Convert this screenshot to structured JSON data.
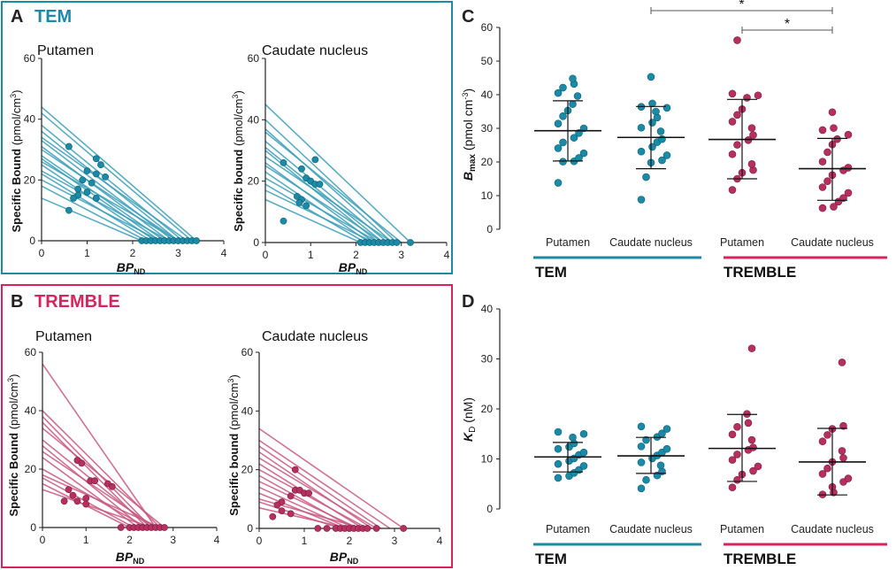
{
  "colors": {
    "tem": "#1a8aa6",
    "tem_line": "#3b9fb8",
    "tremble": "#d6245c",
    "tremble_point": "#b5305e",
    "tremble_line": "#c9587f",
    "axis": "#222222"
  },
  "panels": {
    "A": {
      "letter": "A",
      "title": "TEM"
    },
    "B": {
      "letter": "B",
      "title": "TREMBLE"
    },
    "C": {
      "letter": "C"
    },
    "D": {
      "letter": "D"
    }
  },
  "scatchard": {
    "ylabel_bold": "Specific Bound",
    "ylabel_bold_lower": "Specific bound",
    "ylabel_unit": "(pmol/cm",
    "ylabel_sup": "3",
    "ylabel_close": ")",
    "xlabel_main": "BP",
    "xlabel_sub": "ND",
    "x_ticks": [
      "0",
      "1",
      "2",
      "3",
      "4"
    ],
    "y_ticks": [
      "0",
      "20",
      "40",
      "60"
    ]
  },
  "group_labels": {
    "tem": "TEM",
    "tremble": "TREMBLE",
    "categories": [
      "Putamen",
      "Caudate nucleus",
      "Putamen",
      "Caudate nucleus"
    ]
  },
  "significance": [
    "*",
    "*"
  ],
  "axis_labels": {
    "bmax_main": "B",
    "bmax_sub": "max",
    "bmax_unit": "(pmol cm",
    "bmax_sup": "-3",
    "bmax_close": ")",
    "kd_main": "K",
    "kd_sub": "D",
    "kd_unit": "(nM)"
  },
  "chart_data": [
    {
      "id": "A-putamen",
      "type": "line",
      "title": "Putamen",
      "group": "TEM",
      "xlabel": "BPND",
      "ylabel": "Specific Bound (pmol/cm3)",
      "xlim": [
        0,
        4
      ],
      "ylim": [
        0,
        60
      ],
      "lines": [
        [
          0,
          44,
          3.4,
          0
        ],
        [
          0,
          42,
          3.3,
          0
        ],
        [
          0,
          38,
          3.1,
          0
        ],
        [
          0,
          36,
          3.0,
          0
        ],
        [
          0,
          34,
          3.2,
          0
        ],
        [
          0,
          33,
          2.9,
          0
        ],
        [
          0,
          31,
          2.8,
          0
        ],
        [
          0,
          30,
          3.0,
          0
        ],
        [
          0,
          28,
          2.7,
          0
        ],
        [
          0,
          27,
          2.6,
          0
        ],
        [
          0,
          26,
          3.0,
          0
        ],
        [
          0,
          25,
          2.5,
          0
        ],
        [
          0,
          23,
          2.8,
          0
        ],
        [
          0,
          22,
          2.4,
          0
        ],
        [
          0,
          20,
          2.6,
          0
        ],
        [
          0,
          18,
          2.3,
          0
        ],
        [
          0,
          14,
          2.2,
          0
        ]
      ],
      "points": [
        [
          0.6,
          31
        ],
        [
          1.2,
          27
        ],
        [
          1.3,
          25
        ],
        [
          1.0,
          23
        ],
        [
          1.2,
          22
        ],
        [
          1.4,
          21
        ],
        [
          0.9,
          20
        ],
        [
          1.1,
          19
        ],
        [
          0.8,
          17
        ],
        [
          1.0,
          16
        ],
        [
          0.8,
          15
        ],
        [
          0.7,
          14
        ],
        [
          1.2,
          14
        ],
        [
          0.6,
          10
        ]
      ],
      "zero_points": [
        2.2,
        2.3,
        2.4,
        2.5,
        2.6,
        2.7,
        2.8,
        2.9,
        3.0,
        3.1,
        3.2,
        3.3,
        3.4
      ]
    },
    {
      "id": "A-caudate",
      "type": "line",
      "title": "Caudate nucleus",
      "group": "TEM",
      "xlabel": "BPND",
      "ylabel": "Specific bound (pmol/cm3)",
      "xlim": [
        0,
        4
      ],
      "ylim": [
        0,
        60
      ],
      "lines": [
        [
          0,
          45,
          3.2,
          0
        ],
        [
          0,
          40,
          2.9,
          0
        ],
        [
          0,
          37,
          2.8,
          0
        ],
        [
          0,
          36,
          3.0,
          0
        ],
        [
          0,
          33,
          2.7,
          0
        ],
        [
          0,
          31,
          2.6,
          0
        ],
        [
          0,
          30,
          2.5,
          0
        ],
        [
          0,
          28,
          2.8,
          0
        ],
        [
          0,
          26,
          2.4,
          0
        ],
        [
          0,
          25,
          2.6,
          0
        ],
        [
          0,
          23,
          2.3,
          0
        ],
        [
          0,
          21,
          2.5,
          0
        ],
        [
          0,
          19,
          2.2,
          0
        ],
        [
          0,
          17,
          2.4,
          0
        ],
        [
          0,
          14,
          2.1,
          0
        ]
      ],
      "points": [
        [
          0.4,
          26
        ],
        [
          1.1,
          27
        ],
        [
          0.8,
          24
        ],
        [
          0.9,
          21
        ],
        [
          1.0,
          20
        ],
        [
          1.1,
          19
        ],
        [
          1.2,
          19
        ],
        [
          0.7,
          15
        ],
        [
          0.8,
          14
        ],
        [
          0.75,
          13
        ],
        [
          0.9,
          12
        ],
        [
          0.4,
          7
        ]
      ],
      "zero_points": [
        2.1,
        2.2,
        2.3,
        2.4,
        2.5,
        2.6,
        2.7,
        2.8,
        2.9,
        3.2
      ]
    },
    {
      "id": "B-putamen",
      "type": "line",
      "title": "Putamen",
      "group": "TREMBLE",
      "xlabel": "BPND",
      "ylabel": "Specific Bound (pmol/cm3)",
      "xlim": [
        0,
        4
      ],
      "ylim": [
        0,
        60
      ],
      "lines": [
        [
          0,
          56,
          2.6,
          0
        ],
        [
          0,
          40,
          2.7,
          0
        ],
        [
          0,
          38,
          2.5,
          0
        ],
        [
          0,
          36,
          2.4,
          0
        ],
        [
          0,
          34,
          2.8,
          0
        ],
        [
          0,
          30,
          2.5,
          0
        ],
        [
          0,
          28,
          2.3,
          0
        ],
        [
          0,
          26,
          2.6,
          0
        ],
        [
          0,
          24,
          2.2,
          0
        ],
        [
          0,
          20,
          2.4,
          0
        ],
        [
          0,
          18,
          2.7,
          0
        ],
        [
          0,
          17,
          2.1,
          0
        ],
        [
          0,
          15,
          2.0,
          0
        ],
        [
          0,
          13,
          2.5,
          0
        ]
      ],
      "points": [
        [
          0.8,
          23
        ],
        [
          0.9,
          22
        ],
        [
          1.1,
          16
        ],
        [
          1.2,
          16
        ],
        [
          1.5,
          15
        ],
        [
          1.6,
          14
        ],
        [
          0.6,
          13
        ],
        [
          0.7,
          11
        ],
        [
          1.0,
          10
        ],
        [
          0.8,
          9
        ],
        [
          0.5,
          9
        ],
        [
          1.0,
          8
        ]
      ],
      "zero_points": [
        1.8,
        2.0,
        2.1,
        2.2,
        2.3,
        2.4,
        2.5,
        2.6,
        2.7,
        2.8
      ]
    },
    {
      "id": "B-caudate",
      "type": "line",
      "title": "Caudate nucleus",
      "group": "TREMBLE",
      "xlabel": "BPND",
      "ylabel": "Specific bound (pmol/cm3)",
      "xlim": [
        0,
        4
      ],
      "ylim": [
        0,
        60
      ],
      "lines": [
        [
          0,
          34,
          3.2,
          0
        ],
        [
          0,
          30,
          2.9,
          0
        ],
        [
          0,
          28,
          2.7,
          0
        ],
        [
          0,
          26,
          2.5,
          0
        ],
        [
          0,
          24,
          2.6,
          0
        ],
        [
          0,
          22,
          2.3,
          0
        ],
        [
          0,
          20,
          2.4,
          0
        ],
        [
          0,
          18,
          2.1,
          0
        ],
        [
          0,
          16,
          2.2,
          0
        ],
        [
          0,
          14,
          2.0,
          0
        ],
        [
          0,
          12,
          1.9,
          0
        ],
        [
          0,
          10,
          2.3,
          0
        ],
        [
          0,
          9,
          1.8,
          0
        ],
        [
          0,
          7,
          2.0,
          0
        ]
      ],
      "points": [
        [
          0.8,
          20
        ],
        [
          0.8,
          13
        ],
        [
          0.9,
          13
        ],
        [
          1.0,
          12
        ],
        [
          1.1,
          12
        ],
        [
          0.7,
          11
        ],
        [
          0.5,
          9
        ],
        [
          0.4,
          8
        ],
        [
          0.5,
          6
        ],
        [
          0.7,
          5
        ],
        [
          0.3,
          4
        ]
      ],
      "zero_points": [
        1.3,
        1.5,
        1.7,
        1.8,
        1.9,
        2.0,
        2.1,
        2.2,
        2.3,
        2.4,
        2.6,
        3.2
      ]
    },
    {
      "id": "C",
      "type": "scatter",
      "ylabel": "Bmax (pmol cm-3)",
      "ylim": [
        0,
        60
      ],
      "yticks": [
        0,
        10,
        20,
        30,
        40,
        50,
        60
      ],
      "categories": [
        "Putamen",
        "Caudate nucleus",
        "Putamen",
        "Caudate nucleus"
      ],
      "groups": [
        "TEM",
        "TEM",
        "TREMBLE",
        "TREMBLE"
      ],
      "means": [
        29.3,
        27.3,
        26.7,
        18.0
      ],
      "sd": [
        [
          20.3,
          38.2
        ],
        [
          18.0,
          36.5
        ],
        [
          15.0,
          38.6
        ],
        [
          8.6,
          27.0
        ]
      ],
      "values": [
        [
          44.8,
          43.2,
          42.1,
          40.5,
          39.6,
          37.2,
          35.3,
          33.6,
          31.4,
          30.0,
          28.6,
          27.2,
          25.8,
          24.1,
          22.6,
          21.2,
          20.2,
          20.1,
          13.8
        ],
        [
          45.3,
          37.4,
          36.4,
          36.1,
          35.0,
          33.2,
          31.7,
          30.2,
          29.1,
          26.8,
          25.9,
          24.5,
          23.1,
          22.0,
          20.5,
          19.8,
          15.5,
          8.8
        ],
        [
          56.2,
          40.3,
          39.8,
          39.1,
          35.7,
          34.0,
          32.0,
          30.1,
          28.0,
          26.5,
          25.1,
          22.3,
          19.4,
          17.6,
          16.8,
          15.0,
          11.7
        ],
        [
          34.8,
          30.1,
          29.5,
          28.1,
          26.8,
          25.2,
          22.9,
          20.1,
          18.3,
          17.5,
          16.1,
          14.3,
          12.5,
          10.8,
          9.3,
          8.2,
          6.7,
          6.3
        ]
      ],
      "significance": [
        {
          "from": 1,
          "to": 3,
          "label": "*"
        },
        {
          "from": 2,
          "to": 3,
          "label": "*"
        }
      ]
    },
    {
      "id": "D",
      "type": "scatter",
      "ylabel": "KD (nM)",
      "ylim": [
        0,
        40
      ],
      "yticks": [
        0,
        10,
        20,
        30,
        40
      ],
      "categories": [
        "Putamen",
        "Caudate nucleus",
        "Putamen",
        "Caudate nucleus"
      ],
      "groups": [
        "TEM",
        "TEM",
        "TREMBLE",
        "TREMBLE"
      ],
      "means": [
        10.4,
        10.6,
        12.1,
        9.4
      ],
      "sd": [
        [
          7.4,
          13.3
        ],
        [
          7.1,
          14.3
        ],
        [
          5.5,
          18.9
        ],
        [
          2.8,
          16.1
        ]
      ],
      "values": [
        [
          15.4,
          15.0,
          14.3,
          13.1,
          12.4,
          12.0,
          11.3,
          10.8,
          10.1,
          9.6,
          9.0,
          8.6,
          7.8,
          7.2,
          6.6,
          6.2
        ],
        [
          16.5,
          16.0,
          15.1,
          14.4,
          13.8,
          12.5,
          12.0,
          11.3,
          10.7,
          10.1,
          9.3,
          8.7,
          7.5,
          6.7,
          5.8,
          4.1
        ],
        [
          32.1,
          19.0,
          17.2,
          16.4,
          14.9,
          13.8,
          12.3,
          11.8,
          10.9,
          9.8,
          8.5,
          7.6,
          6.9,
          5.8,
          4.3
        ],
        [
          29.3,
          16.6,
          16.0,
          14.8,
          13.5,
          11.6,
          10.2,
          9.4,
          8.1,
          7.0,
          6.1,
          5.4,
          4.4,
          3.3,
          2.9
        ]
      ]
    }
  ]
}
